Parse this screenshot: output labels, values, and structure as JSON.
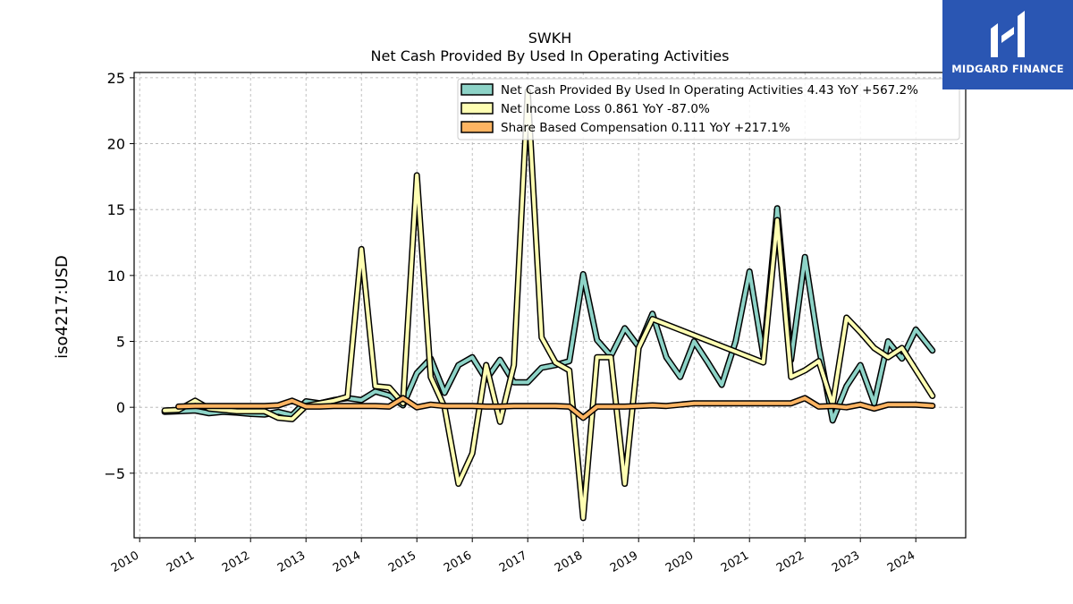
{
  "logo": {
    "name": "MIDGARD FINANCE",
    "bg_color": "#2a56b3"
  },
  "chart_data": {
    "type": "line",
    "title": "SWKH",
    "subtitle": "Net Cash Provided By Used In Operating Activities",
    "ylabel": "iso4217:USD",
    "xlim": [
      2009.9,
      2024.9
    ],
    "ylim": [
      -9.9,
      25.4
    ],
    "grid": true,
    "legend_position": "top-right",
    "x_ticks": [
      2010,
      2011,
      2012,
      2013,
      2014,
      2015,
      2016,
      2017,
      2018,
      2019,
      2020,
      2021,
      2022,
      2023,
      2024
    ],
    "x_tick_labels": [
      "2010",
      "2011",
      "2012",
      "2013",
      "2014",
      "2015",
      "2016",
      "2017",
      "2018",
      "2019",
      "2020",
      "2021",
      "2022",
      "2023",
      "2024"
    ],
    "y_ticks": [
      -5,
      0,
      5,
      10,
      15,
      20,
      25
    ],
    "y_tick_labels": [
      "−5",
      "0",
      "5",
      "10",
      "15",
      "20",
      "25"
    ],
    "series": [
      {
        "name": "Net Cash Provided By Used In Operating Activities",
        "legend_label": "Net Cash Provided By Used In Operating Activities  4.43 YoY +567.2%",
        "color": "#8dd3c7",
        "points": [
          [
            2010.45,
            -0.35
          ],
          [
            2010.7,
            -0.3
          ],
          [
            2011.0,
            -0.25
          ],
          [
            2011.25,
            -0.45
          ],
          [
            2011.5,
            -0.35
          ],
          [
            2011.75,
            -0.4
          ],
          [
            2012.0,
            -0.5
          ],
          [
            2012.25,
            -0.55
          ],
          [
            2012.5,
            -0.35
          ],
          [
            2012.75,
            -0.6
          ],
          [
            2013.0,
            0.45
          ],
          [
            2013.25,
            0.3
          ],
          [
            2013.5,
            0.55
          ],
          [
            2013.75,
            0.7
          ],
          [
            2014.0,
            0.55
          ],
          [
            2014.25,
            1.2
          ],
          [
            2014.5,
            0.9
          ],
          [
            2014.75,
            0.15
          ],
          [
            2015.0,
            2.6
          ],
          [
            2015.25,
            3.7
          ],
          [
            2015.5,
            1.1
          ],
          [
            2015.75,
            3.2
          ],
          [
            2016.0,
            3.8
          ],
          [
            2016.25,
            2.1
          ],
          [
            2016.5,
            3.6
          ],
          [
            2016.75,
            1.9
          ],
          [
            2017.0,
            1.9
          ],
          [
            2017.25,
            3.0
          ],
          [
            2017.5,
            3.2
          ],
          [
            2017.75,
            3.5
          ],
          [
            2018.0,
            10.1
          ],
          [
            2018.25,
            5.1
          ],
          [
            2018.5,
            3.9
          ],
          [
            2018.75,
            6.0
          ],
          [
            2019.0,
            4.6
          ],
          [
            2019.25,
            7.1
          ],
          [
            2019.5,
            3.8
          ],
          [
            2019.75,
            2.3
          ],
          [
            2020.0,
            5.0
          ],
          [
            2020.25,
            3.4
          ],
          [
            2020.5,
            1.7
          ],
          [
            2020.75,
            5.0
          ],
          [
            2021.0,
            10.3
          ],
          [
            2021.25,
            3.9
          ],
          [
            2021.5,
            15.1
          ],
          [
            2021.75,
            3.6
          ],
          [
            2022.0,
            11.4
          ],
          [
            2022.25,
            4.6
          ],
          [
            2022.5,
            -1.0
          ],
          [
            2022.75,
            1.6
          ],
          [
            2023.0,
            3.2
          ],
          [
            2023.25,
            0.3
          ],
          [
            2023.5,
            5.0
          ],
          [
            2023.75,
            3.7
          ],
          [
            2024.0,
            5.9
          ],
          [
            2024.3,
            4.3
          ]
        ]
      },
      {
        "name": "Net Income Loss",
        "legend_label": "Net Income Loss  0.861 YoY -87.0%",
        "color": "#ffffb3",
        "points": [
          [
            2010.45,
            -0.25
          ],
          [
            2010.7,
            -0.2
          ],
          [
            2011.0,
            0.5
          ],
          [
            2011.25,
            -0.1
          ],
          [
            2011.5,
            -0.2
          ],
          [
            2011.75,
            -0.3
          ],
          [
            2012.0,
            -0.3
          ],
          [
            2012.25,
            -0.3
          ],
          [
            2012.5,
            -0.8
          ],
          [
            2012.75,
            -0.9
          ],
          [
            2013.0,
            0.1
          ],
          [
            2013.25,
            0.3
          ],
          [
            2013.5,
            0.5
          ],
          [
            2013.75,
            0.8
          ],
          [
            2014.0,
            12.0
          ],
          [
            2014.25,
            1.6
          ],
          [
            2014.5,
            1.5
          ],
          [
            2014.75,
            0.3
          ],
          [
            2015.0,
            17.6
          ],
          [
            2015.25,
            2.3
          ],
          [
            2015.5,
            0.0
          ],
          [
            2015.75,
            -5.8
          ],
          [
            2016.0,
            -3.5
          ],
          [
            2016.25,
            3.2
          ],
          [
            2016.5,
            -1.1
          ],
          [
            2016.75,
            3.2
          ],
          [
            2017.0,
            24.0
          ],
          [
            2017.25,
            5.3
          ],
          [
            2017.5,
            3.4
          ],
          [
            2017.75,
            2.8
          ],
          [
            2018.0,
            -8.4
          ],
          [
            2018.25,
            3.8
          ],
          [
            2018.5,
            3.8
          ],
          [
            2018.75,
            -5.8
          ],
          [
            2019.0,
            4.5
          ],
          [
            2019.25,
            6.7
          ],
          [
            2021.25,
            3.4
          ],
          [
            2021.5,
            14.2
          ],
          [
            2021.75,
            2.3
          ],
          [
            2022.0,
            2.8
          ],
          [
            2022.25,
            3.5
          ],
          [
            2022.5,
            0.2
          ],
          [
            2022.75,
            6.8
          ],
          [
            2023.0,
            5.7
          ],
          [
            2023.25,
            4.5
          ],
          [
            2023.5,
            3.8
          ],
          [
            2023.75,
            4.5
          ],
          [
            2024.3,
            0.86
          ]
        ]
      },
      {
        "name": "Share Based Compensation",
        "legend_label": "Share Based Compensation  0.111 YoY +217.1%",
        "color": "#fdb462",
        "points": [
          [
            2010.7,
            0.05
          ],
          [
            2011.0,
            0.1
          ],
          [
            2011.25,
            0.1
          ],
          [
            2011.5,
            0.1
          ],
          [
            2011.75,
            0.1
          ],
          [
            2012.0,
            0.1
          ],
          [
            2012.25,
            0.1
          ],
          [
            2012.5,
            0.15
          ],
          [
            2012.75,
            0.5
          ],
          [
            2013.0,
            0.05
          ],
          [
            2013.25,
            0.05
          ],
          [
            2013.5,
            0.1
          ],
          [
            2013.75,
            0.1
          ],
          [
            2014.0,
            0.1
          ],
          [
            2014.25,
            0.1
          ],
          [
            2014.5,
            0.05
          ],
          [
            2014.75,
            0.7
          ],
          [
            2015.0,
            0.0
          ],
          [
            2015.25,
            0.2
          ],
          [
            2015.5,
            0.1
          ],
          [
            2015.75,
            0.1
          ],
          [
            2016.0,
            0.1
          ],
          [
            2016.25,
            0.05
          ],
          [
            2016.5,
            0.05
          ],
          [
            2016.75,
            0.1
          ],
          [
            2017.0,
            0.1
          ],
          [
            2017.25,
            0.1
          ],
          [
            2017.5,
            0.1
          ],
          [
            2017.75,
            0.05
          ],
          [
            2018.0,
            -0.8
          ],
          [
            2018.25,
            0.05
          ],
          [
            2018.5,
            0.05
          ],
          [
            2018.75,
            0.05
          ],
          [
            2019.0,
            0.1
          ],
          [
            2019.25,
            0.15
          ],
          [
            2019.5,
            0.1
          ],
          [
            2019.75,
            0.2
          ],
          [
            2020.0,
            0.3
          ],
          [
            2020.25,
            0.3
          ],
          [
            2020.5,
            0.3
          ],
          [
            2020.75,
            0.3
          ],
          [
            2021.0,
            0.3
          ],
          [
            2021.25,
            0.3
          ],
          [
            2021.5,
            0.3
          ],
          [
            2021.75,
            0.3
          ],
          [
            2022.0,
            0.7
          ],
          [
            2022.25,
            0.05
          ],
          [
            2022.5,
            0.1
          ],
          [
            2022.75,
            0.0
          ],
          [
            2023.0,
            0.2
          ],
          [
            2023.25,
            -0.1
          ],
          [
            2023.5,
            0.2
          ],
          [
            2023.75,
            0.2
          ],
          [
            2024.0,
            0.2
          ],
          [
            2024.3,
            0.11
          ]
        ]
      }
    ]
  }
}
